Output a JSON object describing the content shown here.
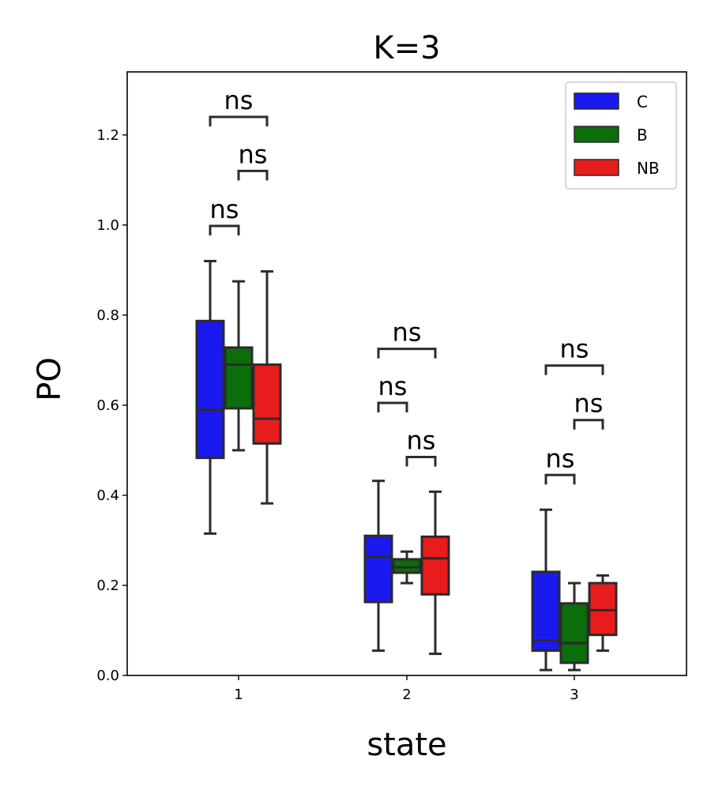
{
  "chart_data": {
    "type": "box",
    "title": "K=3",
    "xlabel": "state",
    "ylabel": "PO",
    "categories": [
      "1",
      "2",
      "3"
    ],
    "ylim": [
      0.0,
      1.34
    ],
    "yticks": [
      "0.0",
      "0.2",
      "0.4",
      "0.6",
      "0.8",
      "1.0",
      "1.2"
    ],
    "legend_position": "top-right",
    "series": [
      {
        "name": "C",
        "color": "#1a1af0",
        "boxes": [
          {
            "whislo": 0.315,
            "q1": 0.483,
            "med": 0.59,
            "q3": 0.787,
            "whishi": 0.92
          },
          {
            "whislo": 0.055,
            "q1": 0.163,
            "med": 0.263,
            "q3": 0.31,
            "whishi": 0.432
          },
          {
            "whislo": 0.012,
            "q1": 0.055,
            "med": 0.078,
            "q3": 0.23,
            "whishi": 0.368
          }
        ]
      },
      {
        "name": "B",
        "color": "#0b6e0b",
        "boxes": [
          {
            "whislo": 0.5,
            "q1": 0.593,
            "med": 0.69,
            "q3": 0.728,
            "whishi": 0.875
          },
          {
            "whislo": 0.205,
            "q1": 0.228,
            "med": 0.24,
            "q3": 0.258,
            "whishi": 0.275
          },
          {
            "whislo": 0.012,
            "q1": 0.028,
            "med": 0.072,
            "q3": 0.16,
            "whishi": 0.205
          }
        ]
      },
      {
        "name": "NB",
        "color": "#e81c1c",
        "boxes": [
          {
            "whislo": 0.382,
            "q1": 0.515,
            "med": 0.57,
            "q3": 0.69,
            "whishi": 0.897
          },
          {
            "whislo": 0.048,
            "q1": 0.18,
            "med": 0.26,
            "q3": 0.308,
            "whishi": 0.408
          },
          {
            "whislo": 0.055,
            "q1": 0.09,
            "med": 0.145,
            "q3": 0.205,
            "whishi": 0.222
          }
        ]
      }
    ],
    "annotations": [
      {
        "category": 0,
        "from": 0,
        "to": 1,
        "y": 0.998,
        "text": "ns"
      },
      {
        "category": 0,
        "from": 1,
        "to": 2,
        "y": 1.12,
        "text": "ns"
      },
      {
        "category": 0,
        "from": 0,
        "to": 2,
        "y": 1.24,
        "text": "ns"
      },
      {
        "category": 1,
        "from": 0,
        "to": 1,
        "y": 0.605,
        "text": "ns"
      },
      {
        "category": 1,
        "from": 1,
        "to": 2,
        "y": 0.485,
        "text": "ns"
      },
      {
        "category": 1,
        "from": 0,
        "to": 2,
        "y": 0.725,
        "text": "ns"
      },
      {
        "category": 2,
        "from": 0,
        "to": 1,
        "y": 0.445,
        "text": "ns"
      },
      {
        "category": 2,
        "from": 1,
        "to": 2,
        "y": 0.567,
        "text": "ns"
      },
      {
        "category": 2,
        "from": 0,
        "to": 2,
        "y": 0.688,
        "text": "ns"
      }
    ]
  }
}
